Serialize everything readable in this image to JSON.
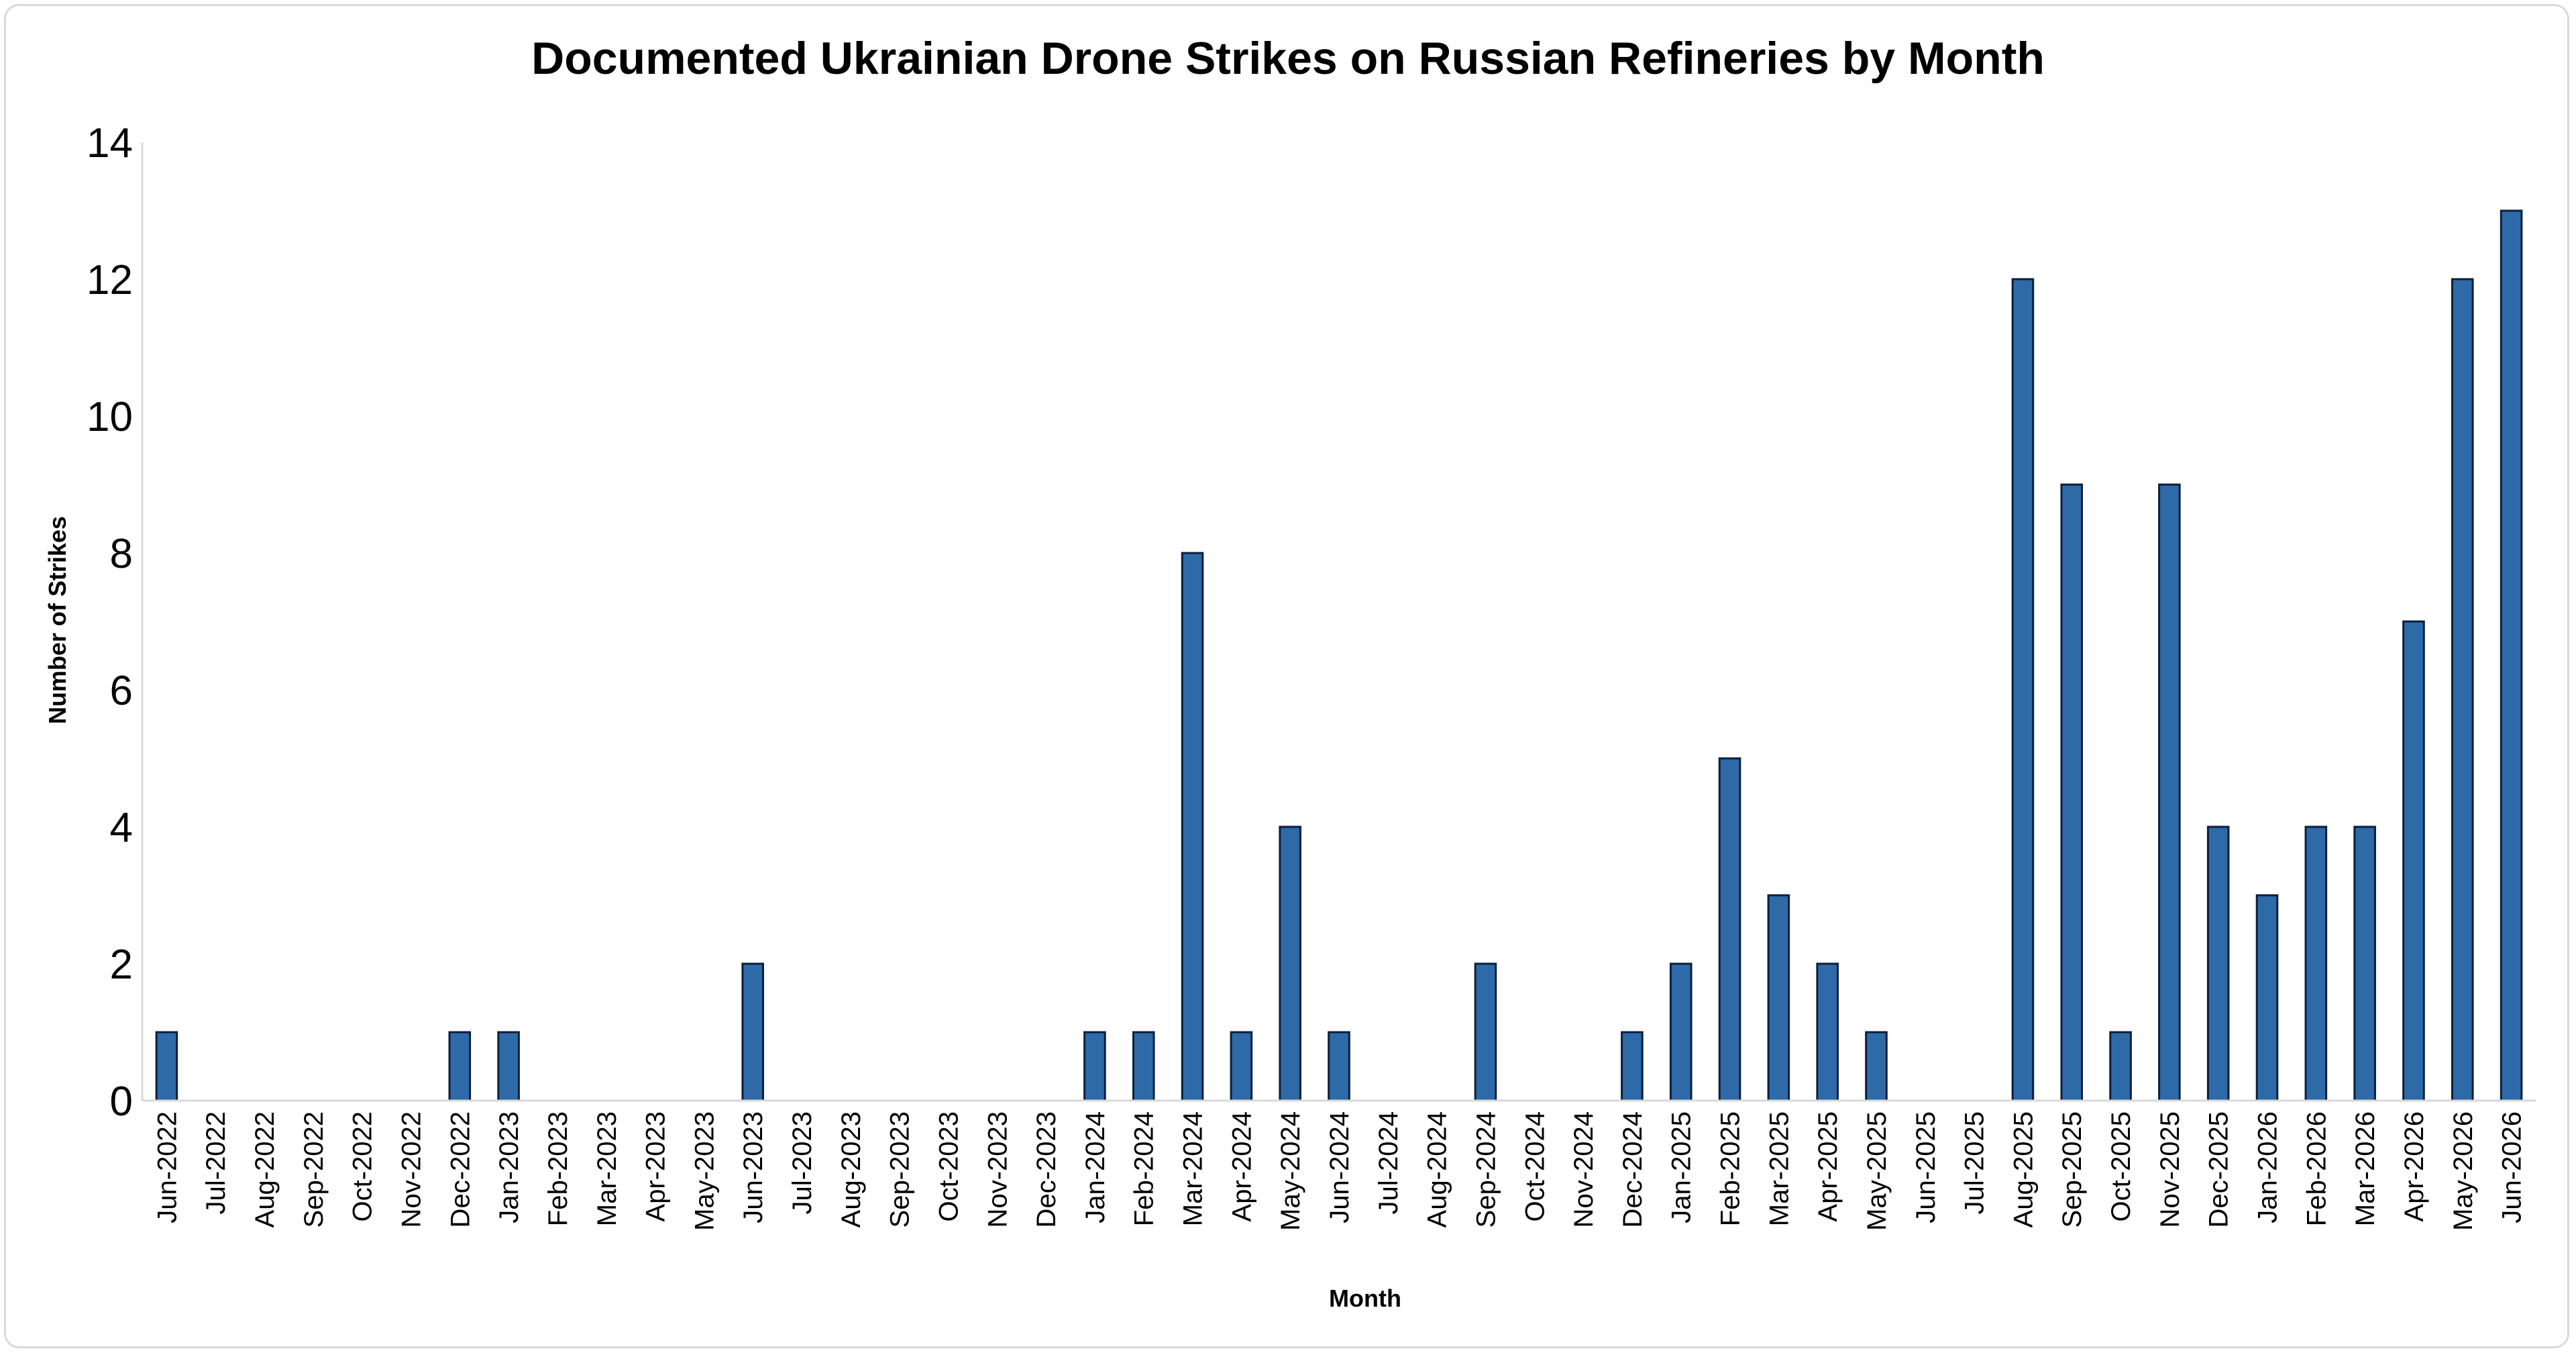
{
  "chart_data": {
    "type": "bar",
    "title": "Documented Ukrainian Drone Strikes on Russian Refineries by Month",
    "xlabel": "Month",
    "ylabel": "Number of Strikes",
    "ylim": [
      0,
      14
    ],
    "yticks": [
      "0",
      "2",
      "4",
      "6",
      "8",
      "10",
      "12",
      "14"
    ],
    "grid": false,
    "legend": "none",
    "bar_color": "#2e6aa8",
    "categories": [
      "Jun-2022",
      "Jul-2022",
      "Aug-2022",
      "Sep-2022",
      "Oct-2022",
      "Nov-2022",
      "Dec-2022",
      "Jan-2023",
      "Feb-2023",
      "Mar-2023",
      "Apr-2023",
      "May-2023",
      "Jun-2023",
      "Jul-2023",
      "Aug-2023",
      "Sep-2023",
      "Oct-2023",
      "Nov-2023",
      "Dec-2023",
      "Jan-2024",
      "Feb-2024",
      "Mar-2024",
      "Apr-2024",
      "May-2024",
      "Jun-2024",
      "Jul-2024",
      "Aug-2024",
      "Sep-2024",
      "Oct-2024",
      "Nov-2024",
      "Dec-2024",
      "Jan-2025",
      "Feb-2025",
      "Mar-2025",
      "Apr-2025",
      "May-2025",
      "Jun-2025",
      "Jul-2025",
      "Aug-2025",
      "Sep-2025",
      "Oct-2025",
      "Nov-2025",
      "Dec-2025",
      "Jan-2026",
      "Feb-2026",
      "Mar-2026",
      "Apr-2026",
      "May-2026",
      "Jun-2026"
    ],
    "values": [
      1,
      0,
      0,
      0,
      0,
      0,
      1,
      1,
      0,
      0,
      0,
      0,
      2,
      0,
      0,
      0,
      0,
      0,
      0,
      1,
      1,
      8,
      1,
      4,
      1,
      0,
      0,
      2,
      0,
      0,
      1,
      2,
      5,
      3,
      2,
      1,
      0,
      0,
      12,
      9,
      1,
      9,
      4,
      3,
      4,
      4,
      7,
      12,
      13
    ]
  }
}
